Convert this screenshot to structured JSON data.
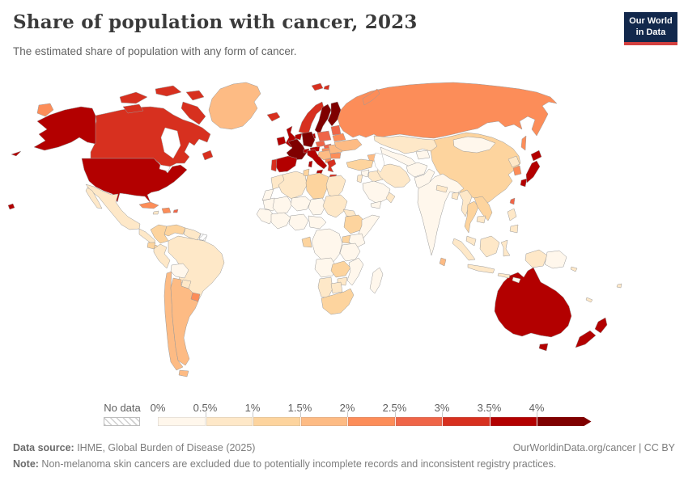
{
  "header": {
    "title": "Share of population with cancer, 2023",
    "subtitle": "The estimated share of population with any form of cancer."
  },
  "logo": {
    "line1": "Our World",
    "line2": "in Data",
    "bg": "#12284c",
    "accent": "#d3403f"
  },
  "legend": {
    "no_data_label": "No data",
    "tick_labels": [
      "0%",
      "0.5%",
      "1%",
      "1.5%",
      "2%",
      "2.5%",
      "3%",
      "3.5%",
      "4%"
    ],
    "colors": [
      "#fff7ec",
      "#fee8c8",
      "#fdd49e",
      "#fdbb84",
      "#fc8d59",
      "#ef6548",
      "#d7301f",
      "#b30000",
      "#7f0000"
    ]
  },
  "footer": {
    "datasource_label": "Data source:",
    "datasource_value": " IHME, Global Burden of Disease (2025)",
    "credit": "OurWorldinData.org/cancer | CC BY",
    "note_label": "Note:",
    "note_text": " Non-melanoma skin cancers are excluded due to potentially incomplete records and inconsistent registry practices."
  },
  "chart_data": {
    "type": "choropleth",
    "title": "Share of population with cancer, 2023",
    "year": 2023,
    "unit": "share of population (%)",
    "legend_bins": [
      "0–0.5%",
      "0.5–1%",
      "1–1.5%",
      "1.5–2%",
      "2–2.5%",
      "2.5–3%",
      "3–3.5%",
      "3.5–4%",
      "4%+"
    ],
    "bin_colors": [
      "#fff7ec",
      "#fee8c8",
      "#fdd49e",
      "#fdbb84",
      "#fc8d59",
      "#ef6548",
      "#d7301f",
      "#b30000",
      "#7f0000"
    ],
    "no_data_regions": [
      "French Guiana"
    ],
    "regions": {
      "canada": {
        "label": "Canada",
        "bin": "3–3.5%",
        "color": "#d7301f"
      },
      "usa": {
        "label": "United States",
        "bin": "3.5–4%",
        "color": "#b30000"
      },
      "greenland": {
        "label": "Greenland",
        "bin": "1.5–2%",
        "color": "#fdbb84"
      },
      "mexico": {
        "label": "Mexico",
        "bin": "0.5–1%",
        "color": "#fee8c8"
      },
      "central-america": {
        "label": "Central America",
        "bin": "0.5–1%",
        "color": "#fee8c8"
      },
      "costa-rica-panama": {
        "label": "Costa Rica / Panama",
        "bin": "1–1.5%",
        "color": "#fdd49e"
      },
      "cuba": {
        "label": "Cuba",
        "bin": "2–2.5%",
        "color": "#fc8d59"
      },
      "hispaniola": {
        "label": "Dominican Republic / Haiti",
        "bin": "2–2.5%",
        "color": "#fc8d59"
      },
      "jamaica": {
        "label": "Jamaica",
        "bin": "0.5–1%",
        "color": "#fee8c8"
      },
      "puerto-rico": {
        "label": "Puerto Rico",
        "bin": "2.5–3%",
        "color": "#ef6548"
      },
      "colombia": {
        "label": "Colombia",
        "bin": "1–1.5%",
        "color": "#fdd49e"
      },
      "venezuela": {
        "label": "Venezuela",
        "bin": "1–1.5%",
        "color": "#fdd49e"
      },
      "ecuador": {
        "label": "Ecuador",
        "bin": "1–1.5%",
        "color": "#fdd49e"
      },
      "guyana-suriname": {
        "label": "Guyana / Suriname",
        "bin": "0.5–1%",
        "color": "#fee8c8"
      },
      "french-guiana": {
        "label": "French Guiana",
        "bin": "No data",
        "color": "no-data"
      },
      "brazil": {
        "label": "Brazil",
        "bin": "0.5–1%",
        "color": "#fee8c8"
      },
      "peru": {
        "label": "Peru",
        "bin": "0.5–1%",
        "color": "#fee8c8"
      },
      "bolivia": {
        "label": "Bolivia",
        "bin": "0–0.5%",
        "color": "#fff7ec"
      },
      "paraguay": {
        "label": "Paraguay",
        "bin": "0.5–1%",
        "color": "#fee8c8"
      },
      "chile": {
        "label": "Chile",
        "bin": "1.5–2%",
        "color": "#fdbb84"
      },
      "argentina": {
        "label": "Argentina",
        "bin": "1.5–2%",
        "color": "#fdbb84"
      },
      "uruguay": {
        "label": "Uruguay",
        "bin": "2–2.5%",
        "color": "#fc8d59"
      },
      "iceland": {
        "label": "Iceland",
        "bin": "3–3.5%",
        "color": "#d7301f"
      },
      "ireland": {
        "label": "Ireland",
        "bin": "3.5–4%",
        "color": "#b30000"
      },
      "uk": {
        "label": "United Kingdom",
        "bin": "3.5–4%",
        "color": "#b30000"
      },
      "norway": {
        "label": "Norway",
        "bin": "3–3.5%",
        "color": "#d7301f"
      },
      "sweden": {
        "label": "Sweden",
        "bin": "4%+",
        "color": "#7f0000"
      },
      "finland": {
        "label": "Finland",
        "bin": "4%+",
        "color": "#7f0000"
      },
      "denmark": {
        "label": "Denmark",
        "bin": "3.5–4%",
        "color": "#b30000"
      },
      "germany": {
        "label": "Germany",
        "bin": "4%+",
        "color": "#7f0000"
      },
      "benelux": {
        "label": "Netherlands / Belgium",
        "bin": "3.5–4%",
        "color": "#b30000"
      },
      "france": {
        "label": "France",
        "bin": "4%+",
        "color": "#7f0000"
      },
      "spain": {
        "label": "Spain",
        "bin": "3.5–4%",
        "color": "#b30000"
      },
      "portugal": {
        "label": "Portugal",
        "bin": "3–3.5%",
        "color": "#d7301f"
      },
      "italy": {
        "label": "Italy",
        "bin": "3.5–4%",
        "color": "#b30000"
      },
      "switzerland": {
        "label": "Switzerland",
        "bin": "3.5–4%",
        "color": "#b30000"
      },
      "austria": {
        "label": "Austria",
        "bin": "3.5–4%",
        "color": "#b30000"
      },
      "czechia": {
        "label": "Czechia",
        "bin": "2.5–3%",
        "color": "#ef6548"
      },
      "slovakia": {
        "label": "Slovakia",
        "bin": "2.5–3%",
        "color": "#ef6548"
      },
      "poland": {
        "label": "Poland",
        "bin": "2.5–3%",
        "color": "#ef6548"
      },
      "hungary": {
        "label": "Hungary",
        "bin": "2–2.5%",
        "color": "#fc8d59"
      },
      "baltics": {
        "label": "Baltic states",
        "bin": "2.5–3%",
        "color": "#ef6548"
      },
      "belarus": {
        "label": "Belarus",
        "bin": "2–2.5%",
        "color": "#fc8d59"
      },
      "ukraine": {
        "label": "Ukraine",
        "bin": "1.5–2%",
        "color": "#fdbb84"
      },
      "romania": {
        "label": "Romania",
        "bin": "1.5–2%",
        "color": "#fdbb84"
      },
      "bulgaria": {
        "label": "Bulgaria",
        "bin": "2–2.5%",
        "color": "#fc8d59"
      },
      "balkans": {
        "label": "Western Balkans",
        "bin": "1.5–2%",
        "color": "#fdbb84"
      },
      "albania-north-macedonia": {
        "label": "Albania / North Macedonia",
        "bin": "2–2.5%",
        "color": "#fc8d59"
      },
      "greece": {
        "label": "Greece",
        "bin": "3–3.5%",
        "color": "#d7301f"
      },
      "russia": {
        "label": "Russia",
        "bin": "2–2.5%",
        "color": "#fc8d59"
      },
      "turkey": {
        "label": "Turkey",
        "bin": "1–1.5%",
        "color": "#fdd49e"
      },
      "caucasus": {
        "label": "Caucasus",
        "bin": "1.5–2%",
        "color": "#fdbb84"
      },
      "syria": {
        "label": "Syria",
        "bin": "0–0.5%",
        "color": "#fff7ec"
      },
      "levant": {
        "label": "Israel / Jordan",
        "bin": "0.5–1%",
        "color": "#fee8c8"
      },
      "iraq": {
        "label": "Iraq",
        "bin": "0.5–1%",
        "color": "#fee8c8"
      },
      "saudi-arabia": {
        "label": "Saudi Arabia",
        "bin": "0–0.5%",
        "color": "#fff7ec"
      },
      "yemen": {
        "label": "Yemen",
        "bin": "0–0.5%",
        "color": "#fff7ec"
      },
      "oman": {
        "label": "Oman",
        "bin": "0.5–1%",
        "color": "#fee8c8"
      },
      "iran": {
        "label": "Iran",
        "bin": "0.5–1%",
        "color": "#fee8c8"
      },
      "kazakhstan": {
        "label": "Kazakhstan",
        "bin": "0.5–1%",
        "color": "#fee8c8"
      },
      "central-asia": {
        "label": "Central Asia",
        "bin": "0–0.5%",
        "color": "#fff7ec"
      },
      "afghanistan": {
        "label": "Afghanistan",
        "bin": "0–0.5%",
        "color": "#fff7ec"
      },
      "pakistan": {
        "label": "Pakistan",
        "bin": "0–0.5%",
        "color": "#fff7ec"
      },
      "india": {
        "label": "India",
        "bin": "0–0.5%",
        "color": "#fff7ec"
      },
      "nepal": {
        "label": "Nepal",
        "bin": "0.5–1%",
        "color": "#fee8c8"
      },
      "bangladesh": {
        "label": "Bangladesh",
        "bin": "0.5–1%",
        "color": "#fee8c8"
      },
      "sri-lanka": {
        "label": "Sri Lanka",
        "bin": "1.5–2%",
        "color": "#fdbb84"
      },
      "china": {
        "label": "China",
        "bin": "1–1.5%",
        "color": "#fdd49e"
      },
      "mongolia": {
        "label": "Mongolia",
        "bin": "0–0.5%",
        "color": "#fff7ec"
      },
      "north-korea": {
        "label": "North Korea",
        "bin": "0.5–1%",
        "color": "#fee8c8"
      },
      "south-korea": {
        "label": "South Korea",
        "bin": "2–2.5%",
        "color": "#fc8d59"
      },
      "japan": {
        "label": "Japan",
        "bin": "3.5–4%",
        "color": "#b30000"
      },
      "taiwan": {
        "label": "Taiwan",
        "bin": "2.5–3%",
        "color": "#ef6548"
      },
      "myanmar": {
        "label": "Myanmar",
        "bin": "0.5–1%",
        "color": "#fee8c8"
      },
      "thailand": {
        "label": "Thailand",
        "bin": "1–1.5%",
        "color": "#fdd49e"
      },
      "vietnam-laos": {
        "label": "Vietnam / Laos",
        "bin": "1–1.5%",
        "color": "#fdd49e"
      },
      "cambodia": {
        "label": "Cambodia",
        "bin": "0.5–1%",
        "color": "#fee8c8"
      },
      "malaysia": {
        "label": "Malaysia",
        "bin": "0.5–1%",
        "color": "#fee8c8"
      },
      "philippines": {
        "label": "Philippines",
        "bin": "0.5–1%",
        "color": "#fee8c8"
      },
      "indonesia": {
        "label": "Indonesia",
        "bin": "0.5–1%",
        "color": "#fee8c8"
      },
      "timor": {
        "label": "Timor-Leste",
        "bin": "0–0.5%",
        "color": "#fff7ec"
      },
      "papua-new-guinea": {
        "label": "Papua New Guinea",
        "bin": "0–0.5%",
        "color": "#fff7ec"
      },
      "pacific-islands": {
        "label": "Pacific islands",
        "bin": "0.5–1%",
        "color": "#fee8c8"
      },
      "australia": {
        "label": "Australia",
        "bin": "3.5–4%",
        "color": "#b30000"
      },
      "new-zealand": {
        "label": "New Zealand",
        "bin": "3.5–4%",
        "color": "#b30000"
      },
      "morocco": {
        "label": "Morocco",
        "bin": "0.5–1%",
        "color": "#fee8c8"
      },
      "western-sahara": {
        "label": "Western Sahara",
        "bin": "0–0.5%",
        "color": "#fff7ec"
      },
      "algeria": {
        "label": "Algeria",
        "bin": "0.5–1%",
        "color": "#fee8c8"
      },
      "tunisia": {
        "label": "Tunisia",
        "bin": "1–1.5%",
        "color": "#fdd49e"
      },
      "libya": {
        "label": "Libya",
        "bin": "1–1.5%",
        "color": "#fdd49e"
      },
      "egypt": {
        "label": "Egypt",
        "bin": "0.5–1%",
        "color": "#fee8c8"
      },
      "mauritania": {
        "label": "Mauritania",
        "bin": "0–0.5%",
        "color": "#fff7ec"
      },
      "mali": {
        "label": "Mali",
        "bin": "0–0.5%",
        "color": "#fff7ec"
      },
      "niger": {
        "label": "Niger",
        "bin": "0–0.5%",
        "color": "#fff7ec"
      },
      "chad": {
        "label": "Chad",
        "bin": "0–0.5%",
        "color": "#fff7ec"
      },
      "sudan": {
        "label": "Sudan",
        "bin": "0.5–1%",
        "color": "#fee8c8"
      },
      "west-africa-1": {
        "label": "Senegal / Guinea",
        "bin": "0–0.5%",
        "color": "#fff7ec"
      },
      "west-africa-2": {
        "label": "Côte d'Ivoire / Ghana",
        "bin": "0–0.5%",
        "color": "#fff7ec"
      },
      "nigeria": {
        "label": "Nigeria",
        "bin": "0–0.5%",
        "color": "#fff7ec"
      },
      "cameroon-car": {
        "label": "Cameroon / CAR",
        "bin": "0–0.5%",
        "color": "#fff7ec"
      },
      "eritrea-djibouti": {
        "label": "Eritrea / Djibouti",
        "bin": "0.5–1%",
        "color": "#fee8c8"
      },
      "ethiopia": {
        "label": "Ethiopia",
        "bin": "1–1.5%",
        "color": "#fdd49e"
      },
      "somalia": {
        "label": "Somalia",
        "bin": "0–0.5%",
        "color": "#fff7ec"
      },
      "kenya": {
        "label": "Kenya",
        "bin": "0–0.5%",
        "color": "#fff7ec"
      },
      "uganda": {
        "label": "Uganda",
        "bin": "1–1.5%",
        "color": "#fdd49e"
      },
      "drc": {
        "label": "Democratic Republic of Congo",
        "bin": "0–0.5%",
        "color": "#fff7ec"
      },
      "gabon-congo": {
        "label": "Gabon / Congo",
        "bin": "1–1.5%",
        "color": "#fdd49e"
      },
      "tanzania": {
        "label": "Tanzania",
        "bin": "0–0.5%",
        "color": "#fff7ec"
      },
      "angola": {
        "label": "Angola",
        "bin": "0–0.5%",
        "color": "#fff7ec"
      },
      "zambia": {
        "label": "Zambia",
        "bin": "1–1.5%",
        "color": "#fdd49e"
      },
      "mozambique": {
        "label": "Mozambique",
        "bin": "0–0.5%",
        "color": "#fff7ec"
      },
      "zimbabwe": {
        "label": "Zimbabwe",
        "bin": "0.5–1%",
        "color": "#fee8c8"
      },
      "namibia": {
        "label": "Namibia",
        "bin": "0.5–1%",
        "color": "#fee8c8"
      },
      "botswana": {
        "label": "Botswana",
        "bin": "0.5–1%",
        "color": "#fee8c8"
      },
      "south-africa": {
        "label": "South Africa",
        "bin": "1–1.5%",
        "color": "#fdd49e"
      },
      "madagascar": {
        "label": "Madagascar",
        "bin": "0–0.5%",
        "color": "#fff7ec"
      }
    }
  }
}
